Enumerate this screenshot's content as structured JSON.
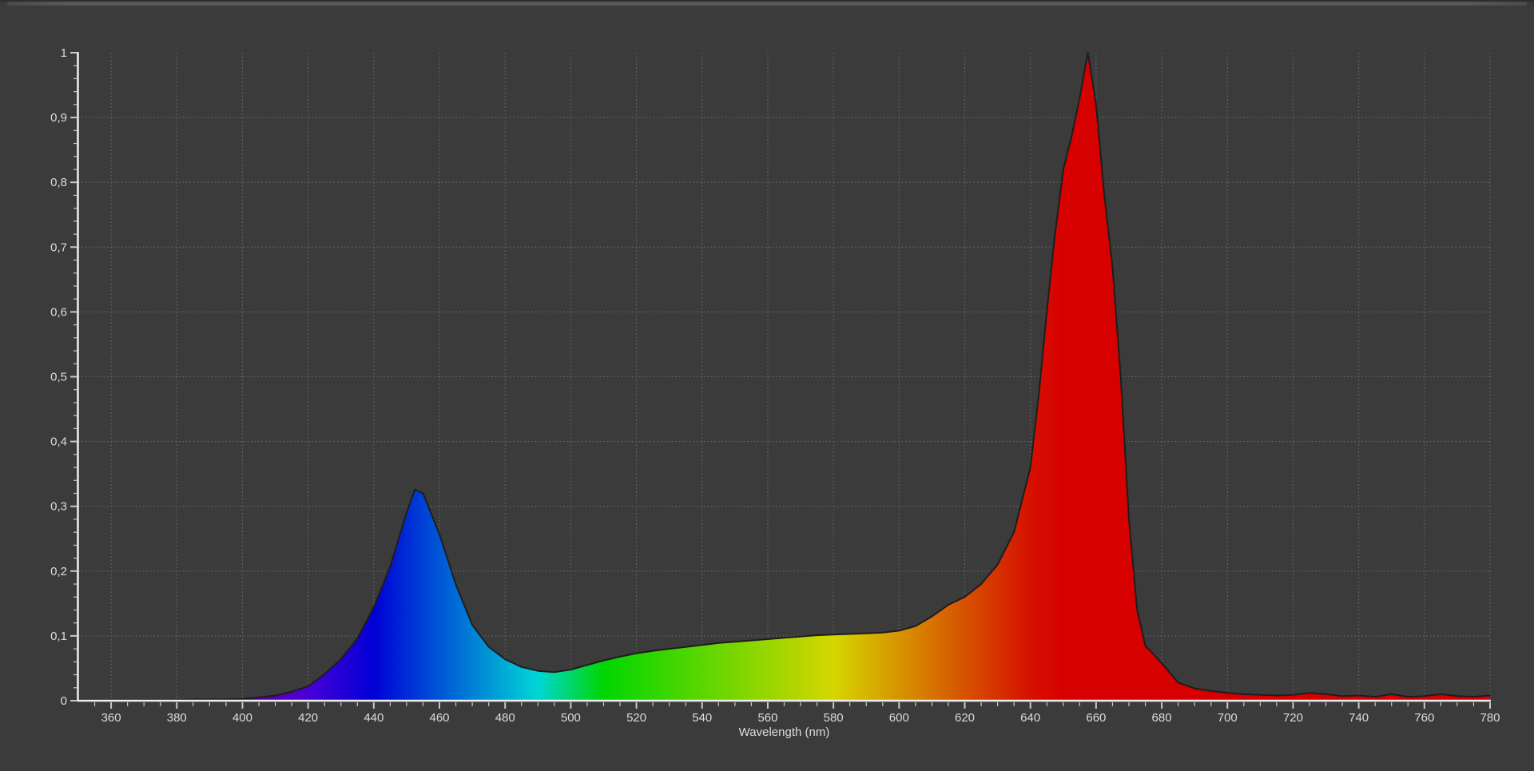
{
  "window": {
    "background_color": "#3b3b3b",
    "splitter_color": "#585858",
    "top_edge_color": "#2d2d2d"
  },
  "chart_data": {
    "type": "area",
    "title": "",
    "xlabel": "Wavelength (nm)",
    "ylabel": "",
    "xlim": [
      350,
      780
    ],
    "ylim": [
      0,
      1
    ],
    "grid": true,
    "legend_position": "none",
    "decimal_separator": ",",
    "x_ticks": [
      {
        "v": 360,
        "label": "360"
      },
      {
        "v": 380,
        "label": "380"
      },
      {
        "v": 400,
        "label": "400"
      },
      {
        "v": 420,
        "label": "420"
      },
      {
        "v": 440,
        "label": "440"
      },
      {
        "v": 460,
        "label": "460"
      },
      {
        "v": 480,
        "label": "480"
      },
      {
        "v": 500,
        "label": "500"
      },
      {
        "v": 520,
        "label": "520"
      },
      {
        "v": 540,
        "label": "540"
      },
      {
        "v": 560,
        "label": "560"
      },
      {
        "v": 580,
        "label": "580"
      },
      {
        "v": 600,
        "label": "600"
      },
      {
        "v": 620,
        "label": "620"
      },
      {
        "v": 640,
        "label": "640"
      },
      {
        "v": 660,
        "label": "660"
      },
      {
        "v": 680,
        "label": "680"
      },
      {
        "v": 700,
        "label": "700"
      },
      {
        "v": 720,
        "label": "720"
      },
      {
        "v": 740,
        "label": "740"
      },
      {
        "v": 760,
        "label": "760"
      },
      {
        "v": 780,
        "label": "780"
      }
    ],
    "x_minor_step": 5,
    "y_ticks": [
      {
        "v": 0,
        "label": "0"
      },
      {
        "v": 0.1,
        "label": "0,1"
      },
      {
        "v": 0.2,
        "label": "0,2"
      },
      {
        "v": 0.3,
        "label": "0,3"
      },
      {
        "v": 0.4,
        "label": "0,4"
      },
      {
        "v": 0.5,
        "label": "0,5"
      },
      {
        "v": 0.6,
        "label": "0,6"
      },
      {
        "v": 0.7,
        "label": "0,7"
      },
      {
        "v": 0.8,
        "label": "0,8"
      },
      {
        "v": 0.9,
        "label": "0,9"
      },
      {
        "v": 1,
        "label": "1"
      }
    ],
    "y_minor_step": 0.02,
    "series": [
      {
        "name": "spectral-power-distribution-normalized",
        "points": [
          [
            350,
            0.001
          ],
          [
            355,
            0.001
          ],
          [
            360,
            0.001
          ],
          [
            365,
            0.001
          ],
          [
            370,
            0.001
          ],
          [
            375,
            0.001
          ],
          [
            380,
            0.001
          ],
          [
            385,
            0.002
          ],
          [
            390,
            0.002
          ],
          [
            395,
            0.002
          ],
          [
            400,
            0.003
          ],
          [
            405,
            0.005
          ],
          [
            410,
            0.008
          ],
          [
            415,
            0.014
          ],
          [
            420,
            0.022
          ],
          [
            425,
            0.041
          ],
          [
            430,
            0.064
          ],
          [
            435,
            0.096
          ],
          [
            440,
            0.144
          ],
          [
            445,
            0.207
          ],
          [
            450,
            0.29
          ],
          [
            452.5,
            0.326
          ],
          [
            455,
            0.32
          ],
          [
            460,
            0.257
          ],
          [
            465,
            0.179
          ],
          [
            470,
            0.117
          ],
          [
            475,
            0.083
          ],
          [
            480,
            0.064
          ],
          [
            485,
            0.052
          ],
          [
            490,
            0.046
          ],
          [
            495,
            0.044
          ],
          [
            500,
            0.048
          ],
          [
            505,
            0.055
          ],
          [
            510,
            0.062
          ],
          [
            515,
            0.068
          ],
          [
            520,
            0.073
          ],
          [
            525,
            0.077
          ],
          [
            530,
            0.08
          ],
          [
            535,
            0.083
          ],
          [
            540,
            0.086
          ],
          [
            545,
            0.089
          ],
          [
            550,
            0.091
          ],
          [
            555,
            0.093
          ],
          [
            560,
            0.095
          ],
          [
            565,
            0.097
          ],
          [
            570,
            0.099
          ],
          [
            575,
            0.101
          ],
          [
            580,
            0.102
          ],
          [
            585,
            0.103
          ],
          [
            590,
            0.104
          ],
          [
            595,
            0.105
          ],
          [
            600,
            0.108
          ],
          [
            605,
            0.115
          ],
          [
            610,
            0.13
          ],
          [
            615,
            0.148
          ],
          [
            620,
            0.16
          ],
          [
            625,
            0.18
          ],
          [
            630,
            0.21
          ],
          [
            635,
            0.26
          ],
          [
            640,
            0.36
          ],
          [
            642.5,
            0.47
          ],
          [
            645,
            0.6
          ],
          [
            647.5,
            0.72
          ],
          [
            650,
            0.82
          ],
          [
            652.5,
            0.87
          ],
          [
            655,
            0.93
          ],
          [
            657.5,
            1.0
          ],
          [
            660,
            0.92
          ],
          [
            662.5,
            0.78
          ],
          [
            665,
            0.67
          ],
          [
            667.5,
            0.5
          ],
          [
            670,
            0.28
          ],
          [
            672.5,
            0.14
          ],
          [
            675,
            0.085
          ],
          [
            680,
            0.058
          ],
          [
            685,
            0.028
          ],
          [
            690,
            0.019
          ],
          [
            695,
            0.015
          ],
          [
            700,
            0.012
          ],
          [
            705,
            0.01
          ],
          [
            710,
            0.009
          ],
          [
            715,
            0.008
          ],
          [
            720,
            0.009
          ],
          [
            725,
            0.012
          ],
          [
            730,
            0.01
          ],
          [
            735,
            0.007
          ],
          [
            740,
            0.008
          ],
          [
            745,
            0.006
          ],
          [
            750,
            0.01
          ],
          [
            755,
            0.006
          ],
          [
            760,
            0.007
          ],
          [
            765,
            0.01
          ],
          [
            770,
            0.007
          ],
          [
            775,
            0.006
          ],
          [
            780,
            0.008
          ]
        ]
      }
    ],
    "peaks": [
      {
        "name": "blue-primary-peak",
        "wavelength_nm": 452,
        "value": 0.33
      },
      {
        "name": "red-primary-peak",
        "wavelength_nm": 657,
        "value": 1.0
      }
    ],
    "spectrum_gradient": [
      {
        "wl": 350,
        "color": "#400040"
      },
      {
        "wl": 380,
        "color": "#400040"
      },
      {
        "wl": 390,
        "color": "#550066"
      },
      {
        "wl": 400,
        "color": "#5d008b"
      },
      {
        "wl": 410,
        "color": "#5800b1"
      },
      {
        "wl": 420,
        "color": "#4700d6"
      },
      {
        "wl": 430,
        "color": "#2400d6"
      },
      {
        "wl": 440,
        "color": "#0000d6"
      },
      {
        "wl": 450,
        "color": "#002bd6"
      },
      {
        "wl": 460,
        "color": "#0056d6"
      },
      {
        "wl": 470,
        "color": "#0080d6"
      },
      {
        "wl": 480,
        "color": "#00abd6"
      },
      {
        "wl": 490,
        "color": "#00d6d6"
      },
      {
        "wl": 500,
        "color": "#00d66b"
      },
      {
        "wl": 510,
        "color": "#00d600"
      },
      {
        "wl": 520,
        "color": "#1fd600"
      },
      {
        "wl": 530,
        "color": "#3dd600"
      },
      {
        "wl": 540,
        "color": "#5cd600"
      },
      {
        "wl": 550,
        "color": "#7ad600"
      },
      {
        "wl": 560,
        "color": "#99d600"
      },
      {
        "wl": 570,
        "color": "#b7d600"
      },
      {
        "wl": 580,
        "color": "#d6d600"
      },
      {
        "wl": 590,
        "color": "#d6b500"
      },
      {
        "wl": 600,
        "color": "#d69400"
      },
      {
        "wl": 610,
        "color": "#d67300"
      },
      {
        "wl": 620,
        "color": "#d65200"
      },
      {
        "wl": 630,
        "color": "#d63100"
      },
      {
        "wl": 640,
        "color": "#d61000"
      },
      {
        "wl": 650,
        "color": "#d60000"
      },
      {
        "wl": 780,
        "color": "#d60000"
      }
    ],
    "colors": {
      "background": "#3b3b3b",
      "axis": "#f0f0f0",
      "tick": "#c9c9c9",
      "grid": "#9a9a9a",
      "label": "#dcdcdc",
      "curve_outline": "#1d1d1d"
    }
  }
}
